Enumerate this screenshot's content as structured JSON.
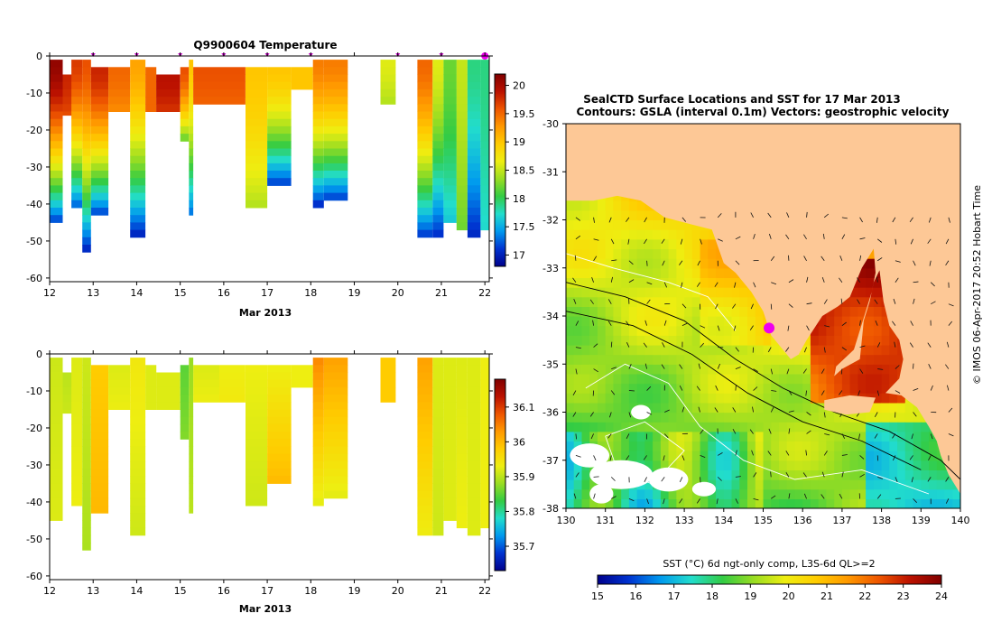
{
  "chart_data": [
    {
      "type": "heatmap",
      "name": "profile-temperature",
      "title": "Q9900604  Temperature",
      "xlabel": "Mar 2013",
      "ylabel": "",
      "xlim": [
        12,
        22.1
      ],
      "ylim": [
        -61,
        0
      ],
      "x_ticks": [
        "12",
        "13",
        "14",
        "15",
        "16",
        "17",
        "18",
        "19",
        "20",
        "21",
        "22"
      ],
      "y_ticks": [
        "0",
        "-10",
        "-20",
        "-30",
        "-40",
        "-50",
        "-60"
      ],
      "profile_markers_x": [
        13,
        14,
        15,
        16,
        17,
        18,
        20,
        21
      ],
      "current_marker_x": 22,
      "colorbar": {
        "min": 16.8,
        "max": 20.2,
        "ticks": [
          "17",
          "17.5",
          "18",
          "18.5",
          "19",
          "19.5",
          "20"
        ]
      },
      "colormap": [
        "#00008c",
        "#0033d0",
        "#0099ee",
        "#22ddcc",
        "#33cc44",
        "#99dd22",
        "#eeee11",
        "#ffcc00",
        "#ff9900",
        "#ee5500",
        "#bb1100",
        "#800000"
      ],
      "profiles": [
        {
          "x": 12.0,
          "w": 0.3,
          "top": -1,
          "bottom": -45,
          "surface": 20.1,
          "deep": 17.0
        },
        {
          "x": 12.3,
          "w": 0.3,
          "top": -5,
          "bottom": -16,
          "surface": 19.8,
          "deep": 19.6
        },
        {
          "x": 12.5,
          "w": 0.25,
          "top": -1,
          "bottom": -41,
          "surface": 19.7,
          "deep": 17.1
        },
        {
          "x": 12.75,
          "w": 0.2,
          "top": -1,
          "bottom": -53,
          "surface": 19.6,
          "deep": 16.9
        },
        {
          "x": 12.95,
          "w": 0.4,
          "top": -3,
          "bottom": -43,
          "surface": 19.8,
          "deep": 17.0
        },
        {
          "x": 13.35,
          "w": 0.5,
          "top": -3,
          "bottom": -15,
          "surface": 19.5,
          "deep": 19.3
        },
        {
          "x": 13.85,
          "w": 0.35,
          "top": -1,
          "bottom": -49,
          "surface": 19.2,
          "deep": 16.9
        },
        {
          "x": 14.2,
          "w": 0.25,
          "top": -3,
          "bottom": -15,
          "surface": 19.5,
          "deep": 19.5
        },
        {
          "x": 14.45,
          "w": 0.55,
          "top": -5,
          "bottom": -15,
          "surface": 19.9,
          "deep": 19.7
        },
        {
          "x": 15.0,
          "w": 0.2,
          "top": -3,
          "bottom": -23,
          "surface": 19.6,
          "deep": 18.0
        },
        {
          "x": 15.2,
          "w": 0.1,
          "top": -1,
          "bottom": -43,
          "surface": 19.0,
          "deep": 17.2
        },
        {
          "x": 15.3,
          "w": 0.6,
          "top": -3,
          "bottom": -13,
          "surface": 19.6,
          "deep": 19.5
        },
        {
          "x": 15.9,
          "w": 0.6,
          "top": -3,
          "bottom": -13,
          "surface": 19.6,
          "deep": 19.5
        },
        {
          "x": 16.5,
          "w": 0.5,
          "top": -3,
          "bottom": -41,
          "surface": 19.0,
          "deep": 18.4
        },
        {
          "x": 17.0,
          "w": 0.55,
          "top": -3,
          "bottom": -35,
          "surface": 19.0,
          "deep": 17.0
        },
        {
          "x": 17.55,
          "w": 0.5,
          "top": -3,
          "bottom": -9,
          "surface": 19.0,
          "deep": 19.0
        },
        {
          "x": 18.05,
          "w": 0.25,
          "top": -1,
          "bottom": -41,
          "surface": 19.4,
          "deep": 16.9
        },
        {
          "x": 18.3,
          "w": 0.55,
          "top": -1,
          "bottom": -39,
          "surface": 19.4,
          "deep": 17.0
        },
        {
          "x": 19.6,
          "w": 0.35,
          "top": -1,
          "bottom": -13,
          "surface": 18.6,
          "deep": 18.4
        },
        {
          "x": 20.45,
          "w": 0.35,
          "top": -1,
          "bottom": -49,
          "surface": 19.5,
          "deep": 17.0
        },
        {
          "x": 20.8,
          "w": 0.25,
          "top": -1,
          "bottom": -49,
          "surface": 18.6,
          "deep": 17.0
        },
        {
          "x": 21.05,
          "w": 0.3,
          "top": -1,
          "bottom": -45,
          "surface": 18.2,
          "deep": 17.6
        },
        {
          "x": 21.35,
          "w": 0.25,
          "top": -1,
          "bottom": -47,
          "surface": 18.5,
          "deep": 18.2
        },
        {
          "x": 21.6,
          "w": 0.3,
          "top": -1,
          "bottom": -49,
          "surface": 17.9,
          "deep": 17.0
        },
        {
          "x": 21.9,
          "w": 0.2,
          "top": -1,
          "bottom": -47,
          "surface": 17.9,
          "deep": 17.7
        }
      ]
    },
    {
      "type": "heatmap",
      "name": "profile-salinity",
      "title": "",
      "xlabel": "Mar 2013",
      "ylabel": "",
      "xlim": [
        12,
        22.1
      ],
      "ylim": [
        -61,
        0
      ],
      "x_ticks": [
        "12",
        "13",
        "14",
        "15",
        "16",
        "17",
        "18",
        "19",
        "20",
        "21",
        "22"
      ],
      "y_ticks": [
        "0",
        "-10",
        "-20",
        "-30",
        "-40",
        "-50",
        "-60"
      ],
      "colorbar": {
        "min": 35.63,
        "max": 36.18,
        "ticks": [
          "35.7",
          "35.8",
          "35.9",
          "36",
          "36.1"
        ]
      },
      "colormap": [
        "#00008c",
        "#0033d0",
        "#0099ee",
        "#22ddcc",
        "#33cc44",
        "#99dd22",
        "#eeee11",
        "#ffcc00",
        "#ff9900",
        "#ee5500",
        "#bb1100",
        "#800000"
      ],
      "profiles": [
        {
          "x": 12.0,
          "w": 0.3,
          "top": -1,
          "bottom": -45,
          "surface": 35.91,
          "deep": 35.92
        },
        {
          "x": 12.3,
          "w": 0.3,
          "top": -5,
          "bottom": -16,
          "surface": 35.9,
          "deep": 35.91
        },
        {
          "x": 12.5,
          "w": 0.25,
          "top": -1,
          "bottom": -41,
          "surface": 35.92,
          "deep": 35.93
        },
        {
          "x": 12.75,
          "w": 0.2,
          "top": -1,
          "bottom": -53,
          "surface": 35.91,
          "deep": 35.89
        },
        {
          "x": 12.95,
          "w": 0.4,
          "top": -3,
          "bottom": -43,
          "surface": 35.98,
          "deep": 36.0
        },
        {
          "x": 13.35,
          "w": 0.5,
          "top": -3,
          "bottom": -15,
          "surface": 35.92,
          "deep": 35.93
        },
        {
          "x": 13.85,
          "w": 0.35,
          "top": -1,
          "bottom": -49,
          "surface": 35.94,
          "deep": 35.91
        },
        {
          "x": 14.2,
          "w": 0.25,
          "top": -3,
          "bottom": -15,
          "surface": 35.92,
          "deep": 35.92
        },
        {
          "x": 14.45,
          "w": 0.55,
          "top": -5,
          "bottom": -15,
          "surface": 35.92,
          "deep": 35.92
        },
        {
          "x": 15.0,
          "w": 0.2,
          "top": -3,
          "bottom": -23,
          "surface": 35.85,
          "deep": 35.87
        },
        {
          "x": 15.2,
          "w": 0.1,
          "top": -1,
          "bottom": -43,
          "surface": 35.88,
          "deep": 35.9
        },
        {
          "x": 15.3,
          "w": 0.6,
          "top": -3,
          "bottom": -13,
          "surface": 35.92,
          "deep": 35.93
        },
        {
          "x": 15.9,
          "w": 0.6,
          "top": -3,
          "bottom": -13,
          "surface": 35.93,
          "deep": 35.94
        },
        {
          "x": 16.5,
          "w": 0.5,
          "top": -3,
          "bottom": -41,
          "surface": 35.93,
          "deep": 35.91
        },
        {
          "x": 17.0,
          "w": 0.55,
          "top": -3,
          "bottom": -35,
          "surface": 35.93,
          "deep": 36.0
        },
        {
          "x": 17.55,
          "w": 0.5,
          "top": -3,
          "bottom": -9,
          "surface": 35.93,
          "deep": 35.93
        },
        {
          "x": 18.05,
          "w": 0.25,
          "top": -1,
          "bottom": -41,
          "surface": 36.04,
          "deep": 35.92
        },
        {
          "x": 18.3,
          "w": 0.55,
          "top": -1,
          "bottom": -39,
          "surface": 36.02,
          "deep": 35.92
        },
        {
          "x": 19.6,
          "w": 0.35,
          "top": -1,
          "bottom": -13,
          "surface": 35.98,
          "deep": 35.98
        },
        {
          "x": 20.45,
          "w": 0.35,
          "top": -1,
          "bottom": -49,
          "surface": 36.02,
          "deep": 35.93
        },
        {
          "x": 20.8,
          "w": 0.25,
          "top": -1,
          "bottom": -49,
          "surface": 35.92,
          "deep": 35.91
        },
        {
          "x": 21.05,
          "w": 0.3,
          "top": -1,
          "bottom": -45,
          "surface": 35.92,
          "deep": 35.92
        },
        {
          "x": 21.35,
          "w": 0.25,
          "top": -1,
          "bottom": -47,
          "surface": 35.92,
          "deep": 35.93
        },
        {
          "x": 21.6,
          "w": 0.3,
          "top": -1,
          "bottom": -49,
          "surface": 35.92,
          "deep": 35.92
        },
        {
          "x": 21.9,
          "w": 0.2,
          "top": -1,
          "bottom": -47,
          "surface": 35.93,
          "deep": 35.93
        }
      ]
    },
    {
      "type": "heatmap",
      "name": "sst-map",
      "title_line1": "SealCTD Surface Locations and SST for 17 Mar 2013",
      "title_line2": "Contours: GSLA (interval 0.1m) Vectors: geostrophic velocity",
      "xlim": [
        130,
        140
      ],
      "ylim": [
        -38,
        -30
      ],
      "x_ticks": [
        "130",
        "131",
        "132",
        "133",
        "134",
        "135",
        "136",
        "137",
        "138",
        "139",
        "140"
      ],
      "y_ticks": [
        "-30",
        "-31",
        "-32",
        "-33",
        "-34",
        "-35",
        "-36",
        "-37",
        "-38"
      ],
      "colorbar_label": "SST (°C) 6d ngt-only comp, L3S-6d QL>=2",
      "colorbar": {
        "min": 15,
        "max": 24,
        "ticks": [
          "15",
          "16",
          "17",
          "18",
          "19",
          "20",
          "21",
          "22",
          "23",
          "24"
        ]
      },
      "colormap": [
        "#00008c",
        "#0033d0",
        "#0099ee",
        "#22ddcc",
        "#33cc44",
        "#99dd22",
        "#eeee11",
        "#ffcc00",
        "#ff9900",
        "#ee5500",
        "#bb1100",
        "#800000"
      ],
      "land_color": "#fdc896",
      "seal_location": {
        "lon": 135.15,
        "lat": -34.25
      },
      "credit": "© IMOS 06-Apr-2017 20:52 Hobart Time"
    }
  ]
}
